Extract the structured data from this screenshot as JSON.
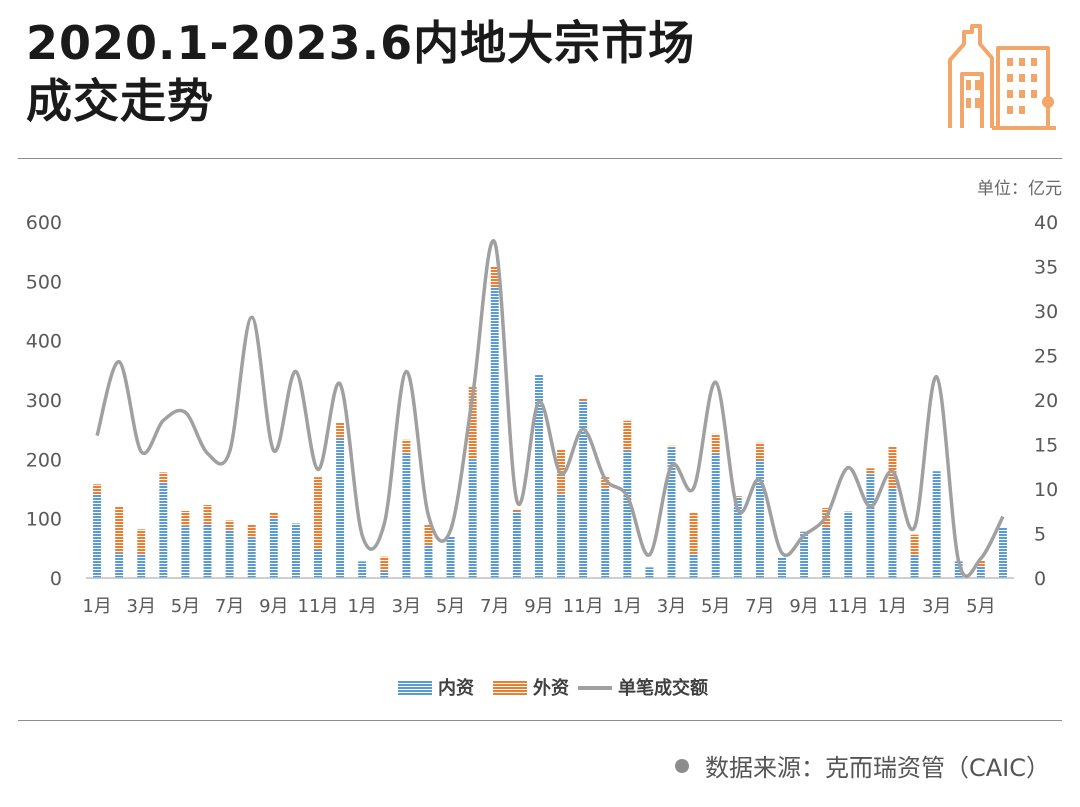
{
  "title": {
    "line1": "2020.1-2023.6内地大宗市场",
    "line2": "成交走势"
  },
  "unit_label": "单位：亿元",
  "icon": "city-buildings-icon",
  "source": {
    "text": "数据来源：克而瑞资管（CAIC）"
  },
  "colors": {
    "domestic": "#5b9bd5",
    "foreign": "#ed7d31",
    "line": "#a0a0a0",
    "icon": "#f2a66a",
    "axis_text": "#595959"
  },
  "chart_data": {
    "type": "bar",
    "stacked": true,
    "categories": [
      "1月",
      "2月",
      "3月",
      "4月",
      "5月",
      "6月",
      "7月",
      "8月",
      "9月",
      "10月",
      "11月",
      "12月",
      "1月",
      "2月",
      "3月",
      "4月",
      "5月",
      "6月",
      "7月",
      "8月",
      "9月",
      "10月",
      "11月",
      "12月",
      "1月",
      "2月",
      "3月",
      "4月",
      "5月",
      "6月",
      "7月",
      "8月",
      "9月",
      "10月",
      "11月",
      "12月",
      "1月",
      "2月",
      "3月",
      "4月",
      "5月",
      "6月"
    ],
    "x_tick_labels": [
      "1月",
      "",
      "3月",
      "",
      "5月",
      "",
      "7月",
      "",
      "9月",
      "",
      "11月",
      "",
      "1月",
      "",
      "3月",
      "",
      "5月",
      "",
      "7月",
      "",
      "9月",
      "",
      "11月",
      "",
      "1月",
      "",
      "3月",
      "",
      "5月",
      "",
      "7月",
      "",
      "9月",
      "",
      "11月",
      "",
      "1月",
      "",
      "3月",
      "",
      "5月",
      ""
    ],
    "series": [
      {
        "name": "内资",
        "axis": "left",
        "values": [
          140,
          42,
          40,
          160,
          88,
          90,
          82,
          68,
          100,
          92,
          48,
          235,
          28,
          12,
          210,
          55,
          70,
          200,
          490,
          112,
          342,
          142,
          298,
          152,
          215,
          18,
          220,
          40,
          210,
          135,
          198,
          35,
          78,
          85,
          112,
          175,
          150,
          38,
          180,
          28,
          20,
          85
        ]
      },
      {
        "name": "外资",
        "axis": "left",
        "values": [
          18,
          78,
          42,
          18,
          25,
          33,
          15,
          23,
          10,
          0,
          122,
          27,
          0,
          24,
          23,
          35,
          0,
          122,
          35,
          3,
          0,
          75,
          5,
          18,
          50,
          0,
          3,
          70,
          33,
          3,
          30,
          0,
          0,
          33,
          0,
          10,
          72,
          35,
          0,
          0,
          10,
          0
        ]
      },
      {
        "name": "单笔成交额",
        "axis": "right",
        "type": "line",
        "values": [
          16,
          24.3,
          14.2,
          17.7,
          18.6,
          14,
          14.2,
          29.3,
          14.3,
          23.2,
          12.2,
          21.8,
          4.8,
          6.1,
          23.2,
          7,
          5.4,
          20.5,
          37.7,
          8.7,
          19.8,
          11.7,
          16.7,
          11.1,
          9.2,
          2.6,
          12.6,
          10.1,
          22,
          7.7,
          11,
          2.8,
          4.8,
          6.9,
          12.4,
          8,
          12,
          5.7,
          22.6,
          1.8,
          2.2,
          6.9
        ]
      }
    ],
    "legend": [
      "内资",
      "外资",
      "单笔成交额"
    ],
    "legend_position": "bottom",
    "ylim_left": [
      0,
      600
    ],
    "yticks_left": [
      0,
      100,
      200,
      300,
      400,
      500,
      600
    ],
    "ylim_right": [
      0,
      40
    ],
    "yticks_right": [
      0,
      5,
      10,
      15,
      20,
      25,
      30,
      35,
      40
    ],
    "grid": false
  }
}
